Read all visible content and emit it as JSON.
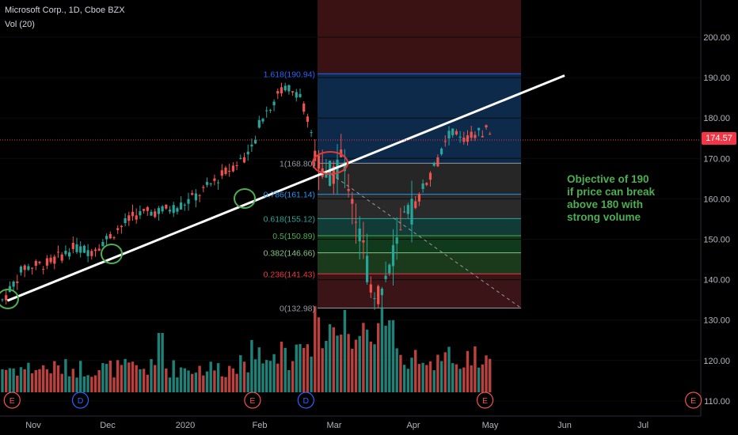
{
  "header": {
    "title": "Microsoft Corp., 1D, Cboe BZX",
    "volume_indicator": "Vol (20)"
  },
  "annotation": {
    "lines": [
      "Objective of 190",
      "if price can break",
      "above 180 with",
      "strong volume"
    ]
  },
  "last_price": "174.57",
  "colors": {
    "background": "#000000",
    "up": "#26a69a",
    "down": "#ef5350",
    "trendline": "#ffffff",
    "annotation": "#4caf50",
    "circle_green": "#4caf50",
    "circle_red": "#e53935"
  },
  "events": [
    {
      "type": "E",
      "date": "Oct 23"
    },
    {
      "type": "D",
      "date": "Nov 20"
    },
    {
      "type": "E",
      "date": "Jan 29"
    },
    {
      "type": "D",
      "date": "Feb 19"
    },
    {
      "type": "E",
      "date": "Apr 29"
    },
    {
      "type": "E",
      "date": "Jul 22"
    }
  ],
  "chart_data": {
    "type": "candlestick",
    "title": "Microsoft Corp., 1D, Cboe BZX",
    "y_axis": {
      "ticks": [
        "200.00",
        "190.00",
        "180.00",
        "170.00",
        "160.00",
        "150.00",
        "140.00",
        "130.00",
        "120.00",
        "110.00"
      ],
      "range": [
        107,
        208
      ],
      "side": "right"
    },
    "x_axis": {
      "ticks": [
        "Nov",
        "Dec",
        "2020",
        "Feb",
        "Mar",
        "Apr",
        "May",
        "Jun",
        "Jul"
      ]
    },
    "fibonacci": {
      "levels": [
        {
          "label": "1.618(190.94)",
          "ratio": 1.618,
          "price": 190.94,
          "color": "#2962ff"
        },
        {
          "label": "1(168.80)",
          "ratio": 1,
          "price": 168.8,
          "color": "#9598a1"
        },
        {
          "label": "0.786(161.14)",
          "ratio": 0.786,
          "price": 161.14,
          "color": "#2196f3"
        },
        {
          "label": "0.618(155.12)",
          "ratio": 0.618,
          "price": 155.12,
          "color": "#26a69a"
        },
        {
          "label": "0.5(150.89)",
          "ratio": 0.5,
          "price": 150.89,
          "color": "#4caf50"
        },
        {
          "label": "0.382(146.66)",
          "ratio": 0.382,
          "price": 146.66,
          "color": "#81c784"
        },
        {
          "label": "0.236(141.43)",
          "ratio": 0.236,
          "price": 141.43,
          "color": "#f23645"
        },
        {
          "label": "0(132.98)",
          "ratio": 0,
          "price": 132.98,
          "color": "#9598a1"
        }
      ]
    },
    "trendline": {
      "start": {
        "date": "Oct 21",
        "price": 134.8
      },
      "end": {
        "date": "Jun 1",
        "price": 190.5
      }
    },
    "volume_label": "Vol (20)"
  }
}
